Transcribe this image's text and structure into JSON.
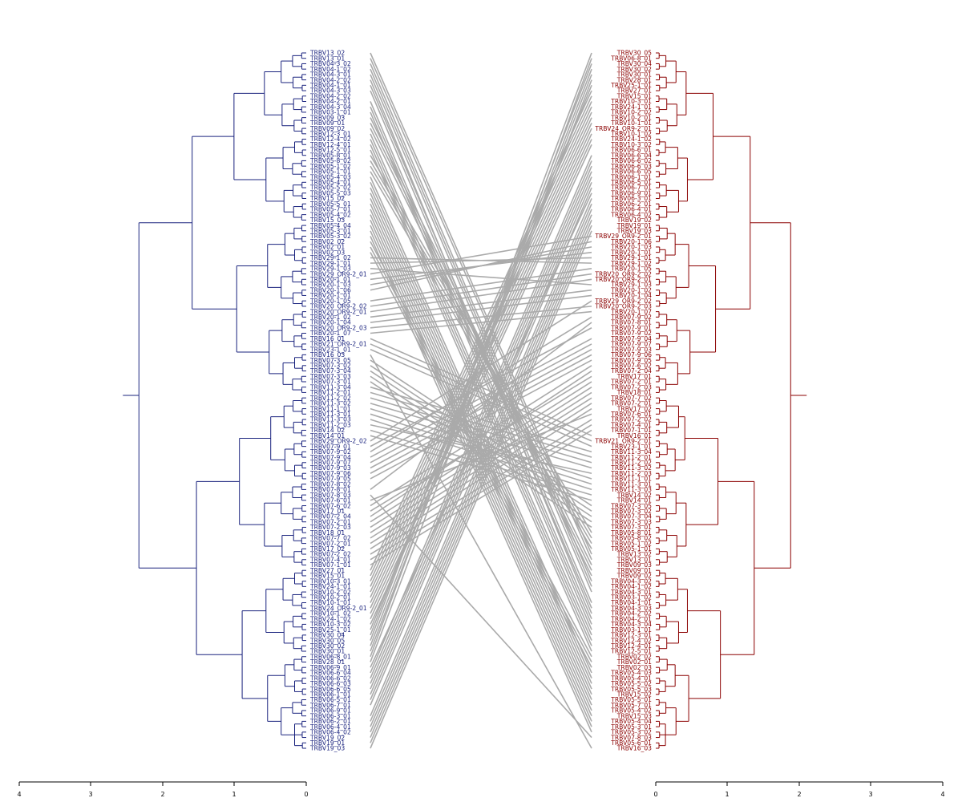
{
  "left_labels": [
    "TRBV13_02",
    "TRBV13_01",
    "TRBV04-3_02",
    "TRBV04-1_02",
    "TRBV04-3_01",
    "TRBV04-2_02",
    "TRBV04-1_01",
    "TRBV04-3_03",
    "TRBV04-2_02",
    "TRBV04-2_01",
    "TRBV04-3_04",
    "TRBV03-1_01",
    "TRBV09_03",
    "TRBV09_01",
    "TRBV09_02",
    "TRBV12-3_01",
    "TRBV12-4_02",
    "TRBV12-4_01",
    "TRBV12-5_01",
    "TRBV05-8_01",
    "TRBV05-8_02",
    "TRBV05-1_02",
    "TRBV05-1_01",
    "TRBV05-4_03",
    "TRBV05-4_01",
    "TRBV05-5_02",
    "TRBV05-5_03",
    "TRBV15_02",
    "TRBV05-5_01",
    "TRBV05-7_01",
    "TRBV05-4_02",
    "TRBV15_03",
    "TRBV05-4_04",
    "TRBV05-3_01",
    "TRBV05-3_02",
    "TRBV02_02",
    "TRBV02_01",
    "TRBV02_03",
    "TRBV29-1_02",
    "TRBV29-1_01",
    "TRBV29-1_03",
    "TRBV29_OR9-2_01",
    "TRBV20-1_01",
    "TRBV20-1_03",
    "TRBV20-1_06",
    "TRBV20-1_01",
    "TRBV20-1_05",
    "TRBV20_OR9-2_02",
    "TRBV20_OR9-2_01",
    "TRBV20-1_02",
    "TRBV20-1_04",
    "TRBV20_OR9-2_03",
    "TRBV20-1_07",
    "TRBV16_01",
    "TRBV21_OR9-2_01",
    "TRBV23-1_01",
    "TRBV16_03",
    "TRBV07-3_05",
    "TRBV07-3_02",
    "TRBV07-3_04",
    "TRBV07-3_03",
    "TRBV07-3_01",
    "TRBV11-3_04",
    "TRBV11-2_01",
    "TRBV11-2_02",
    "TRBV11-3_02",
    "TRBV11-1_01",
    "TRBV11-3_01",
    "TRBV11-3_03",
    "TRBV11-2_03",
    "TRBV14_02",
    "TRBV14_01",
    "TRBV29_OR9-2_02",
    "TRBV07-9_01",
    "TRBV07-9_02",
    "TRBV07-9_04",
    "TRBV07-9_07",
    "TRBV07-9_03",
    "TRBV07-9_06",
    "TRBV07-9_05",
    "TRBV07-8_02",
    "TRBV07-8_01",
    "TRBV07-8_03",
    "TRBV07-6_01",
    "TRBV07-6_02",
    "TRBV17_01",
    "TRBV07-2_04",
    "TRBV07-2_01",
    "TRBV07-2_03",
    "TRBV18_01",
    "TRBV07-7_02",
    "TRBV07-2_01",
    "TRBV17_02",
    "TRBV07-2_02",
    "TRBV07-4_01",
    "TRBV07-1_01",
    "TRBV27_01",
    "TRBV15_01",
    "TRBV10-3_01",
    "TRBV24-1_01",
    "TRBV10-2_02",
    "TRBV10-2_01",
    "TRBV10-1_01",
    "TRBV24_OR9-2_01",
    "TRBV10-1_02",
    "TRBV24-1_02",
    "TRBV10-3_02",
    "TRBV25-1_01",
    "TRBV30_04",
    "TRBV30_05",
    "TRBV30_02",
    "TRBV30_01",
    "TRBV06-8_01",
    "TRBV28_01",
    "TRBV06-9_01",
    "TRBV06-6_04",
    "TRBV06-6_02",
    "TRBV06-6_03",
    "TRBV06-6_05",
    "TRBV06-1_01",
    "TRBV06-5_01",
    "TRBV06-7_01",
    "TRBV06-9_01",
    "TRBV06-3_01",
    "TRBV06-2_01",
    "TRBV06-4_01",
    "TRBV06-4_02",
    "TRBV19_02",
    "TRBV19_01",
    "TRBV19_03"
  ],
  "right_labels": [
    "TRBV30_05",
    "TRBV06-8_01",
    "TRBV30_04",
    "TRBV30_02",
    "TRBV30_01",
    "TRBV28_01",
    "TRBV25-1_01",
    "TRBV27_01",
    "TRBV15_01",
    "TRBV10-3_01",
    "TRBV24-1_01",
    "TRBV10-2_02",
    "TRBV10-2_01",
    "TRBV10-1_01",
    "TRBV24_OR9-2_01",
    "TRBV10-1_02",
    "TRBV24-1_02",
    "TRBV10-3_02",
    "TRBV06-6_01",
    "TRBV06-6_04",
    "TRBV06-6_02",
    "TRBV06-6_03",
    "TRBV06-6_05",
    "TRBV06-1_01",
    "TRBV06-5_01",
    "TRBV06-7_01",
    "TRBV06-9_01",
    "TRBV06-3_01",
    "TRBV06-2_01",
    "TRBV06-4_01",
    "TRBV06-4_02",
    "TRBV19_02",
    "TRBV19_01",
    "TRBV19_03",
    "TRBV29_OR9-2_01",
    "TRBV20-1_06",
    "TRBV20-1_03",
    "TRBV20-1_01",
    "TRBV29-1_01",
    "TRBV29-1_02",
    "TRBV20-1_05",
    "TRBV20_OR9-2_02",
    "TRBV20_OR9-2_01",
    "TRBV29-1_03",
    "TRBV20-1_02",
    "TRBV20-1_04",
    "TRBV29_OR9-2_02",
    "TRBV20_OR9-2_03",
    "TRBV20-1_07",
    "TRBV07-9_02",
    "TRBV07-8_01",
    "TRBV07-9_01",
    "TRBV07-9_02",
    "TRBV07-9_04",
    "TRBV07-9_07",
    "TRBV07-9_03",
    "TRBV07-9_06",
    "TRBV07-9_05",
    "TRBV07-6_02",
    "TRBV07-2_04",
    "TRBV17_01",
    "TRBV07-2_01",
    "TRBV07-2_03",
    "TRBV18_01",
    "TRBV07-7_02",
    "TRBV07-2_01",
    "TRBV17_02",
    "TRBV07-6_01",
    "TRBV07-2_02",
    "TRBV07-4_01",
    "TRBV07-1_01",
    "TRBV16_01",
    "TRBV21_OR9-2_01",
    "TRBV23-1_01",
    "TRBV11-3_04",
    "TRBV11-2_01",
    "TRBV11-2_02",
    "TRBV11-3_02",
    "TRBV11-2_03",
    "TRBV11-1_01",
    "TRBV11-3_01",
    "TRBV11-3_03",
    "TRBV14_02",
    "TRBV14_01",
    "TRBV07-3_05",
    "TRBV07-3_02",
    "TRBV07-3_04",
    "TRBV07-3_03",
    "TRBV07-3_01",
    "TRBV05-8_01",
    "TRBV05-8_02",
    "TRBV05-1_02",
    "TRBV05-1_01",
    "TRBV13_02",
    "TRBV13_01",
    "TRBV09_03",
    "TRBV09_01",
    "TRBV09_02",
    "TRBV04-3_02",
    "TRBV04-1_02",
    "TRBV04-3_01",
    "TRBV03-1_02",
    "TRBV04-1_01",
    "TRBV04-3_03",
    "TRBV04-2_02",
    "TRBV04-2_01",
    "TRBV04-3_04",
    "TRBV03-1_01",
    "TRBV12-3_01",
    "TRBV12-4_02",
    "TRBV12-4_01",
    "TRBV12-5_01",
    "TRBV02_02",
    "TRBV02_01",
    "TRBV02_03",
    "TRBV05-4_03",
    "TRBV05-4_01",
    "TRBV05-5_02",
    "TRBV05-5_03",
    "TRBV15_02",
    "TRBV05-5_01",
    "TRBV05-7_01",
    "TRBV05-4_02",
    "TRBV15_03",
    "TRBV05-4_04",
    "TRBV05-3_01",
    "TRBV05-3_02",
    "TRBV07-8_03",
    "TRBV05-6_01",
    "TRBV16_03"
  ],
  "left_axis_ticks": [
    "4",
    "3",
    "2",
    "1",
    "0"
  ],
  "right_axis_ticks": [
    "0",
    "1",
    "2",
    "3",
    "4"
  ],
  "colors": {
    "left_tree": "#1a237e",
    "right_tree": "#8b0000",
    "connectors": "#aaaaaa",
    "axis": "#000000"
  }
}
